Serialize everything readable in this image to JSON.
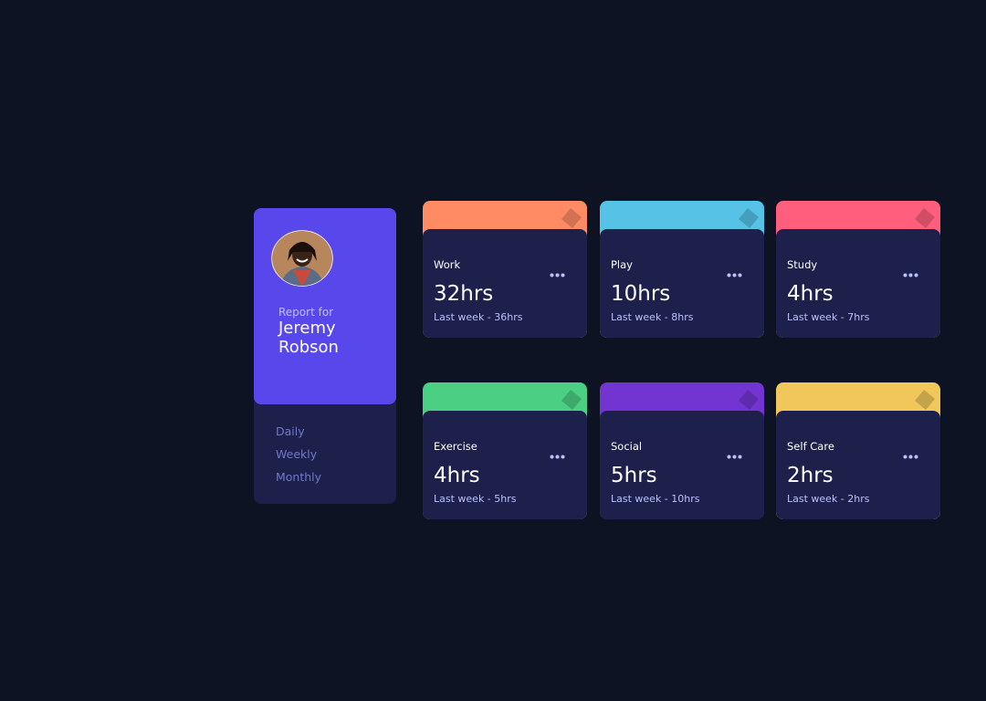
{
  "profile": {
    "caption": "Report for",
    "name": "Jeremy Robson"
  },
  "menu": [
    "Daily",
    "Weekly",
    "Monthly"
  ],
  "cards": [
    {
      "title": "Work",
      "hours": "32hrs",
      "previous": "Last week - 36hrs",
      "color": "#ff8b64"
    },
    {
      "title": "Play",
      "hours": "10hrs",
      "previous": "Last week - 8hrs",
      "color": "#55c2e6"
    },
    {
      "title": "Study",
      "hours": "4hrs",
      "previous": "Last week - 7hrs",
      "color": "#ff5e7d"
    },
    {
      "title": "Exercise",
      "hours": "4hrs",
      "previous": "Last week - 5hrs",
      "color": "#4bcf82"
    },
    {
      "title": "Social",
      "hours": "5hrs",
      "previous": "Last week - 10hrs",
      "color": "#7335d2"
    },
    {
      "title": "Self Care",
      "hours": "2hrs",
      "previous": "Last week - 2hrs",
      "color": "#f1c75b"
    }
  ]
}
